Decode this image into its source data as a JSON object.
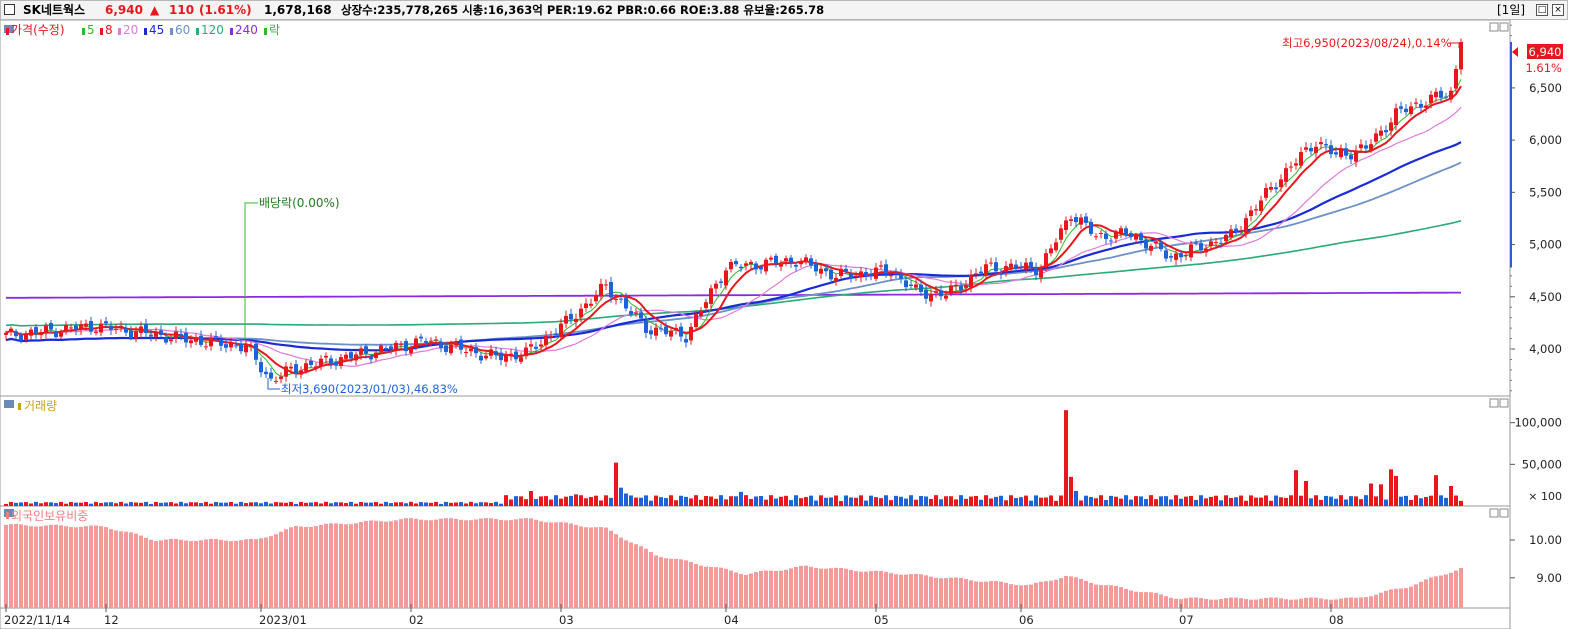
{
  "header": {
    "stock_name": "SK네트웍스",
    "price": "6,940",
    "change_arrow": "▲",
    "change": "110",
    "change_pct": "(1.61%)",
    "volume": "1,678,168",
    "stats": "상장수:235,778,265 시총:16,363억 PER:19.62 PBR:0.66 ROE:3.88 유보율:265.78",
    "period": "[1일]"
  },
  "colors": {
    "up": "#e8171d",
    "down": "#1e63d6",
    "ma5": "#2fb82f",
    "ma8": "#e8171d",
    "ma20": "#e07adf",
    "ma45": "#1a2bd6",
    "ma60": "#6c90c8",
    "ma120": "#2aaa76",
    "ma240": "#8a2be2",
    "foreign": "#f59a9a"
  },
  "legend": {
    "price_label": "가격(수정)",
    "items": [
      {
        "label": "5",
        "color": "#2fb82f"
      },
      {
        "label": "8",
        "color": "#e8171d"
      },
      {
        "label": "20",
        "color": "#e07adf"
      },
      {
        "label": "45",
        "color": "#1a2bd6"
      },
      {
        "label": "60",
        "color": "#6c90c8"
      },
      {
        "label": "120",
        "color": "#2aaa76"
      },
      {
        "label": "240",
        "color": "#8a2be2"
      },
      {
        "label": "락",
        "color": "#2fb82f"
      }
    ],
    "volume_label": "거래량",
    "foreign_label": "외국인보유비중"
  },
  "annotations": {
    "dividend": "배당락(0.00%)",
    "low": "최저3,690(2023/01/03),46.83%",
    "high": "최고6,950(2023/08/24),0.14%",
    "current_price": "6,940",
    "current_pct": "1.61%"
  },
  "chart_data": [
    {
      "type": "candlestick",
      "title": "가격(수정)",
      "yticks": [
        4000,
        4500,
        5000,
        5500,
        6000,
        6500
      ],
      "ytick_labels": [
        "4,000",
        "4,500",
        "5,000",
        "5,500",
        "6,000",
        "6,500"
      ],
      "ylim": [
        3550,
        7150
      ],
      "anchors": [
        {
          "d": 0,
          "c": 4130
        },
        {
          "d": 18,
          "c": 4220
        },
        {
          "d": 35,
          "c": 4100
        },
        {
          "d": 48,
          "c": 4020
        },
        {
          "d": 53,
          "c": 3700
        },
        {
          "d": 58,
          "c": 3820
        },
        {
          "d": 72,
          "c": 3960
        },
        {
          "d": 84,
          "c": 4080
        },
        {
          "d": 98,
          "c": 3920
        },
        {
          "d": 104,
          "c": 3960
        },
        {
          "d": 112,
          "c": 4250
        },
        {
          "d": 120,
          "c": 4600
        },
        {
          "d": 128,
          "c": 4200
        },
        {
          "d": 136,
          "c": 4130
        },
        {
          "d": 144,
          "c": 4780
        },
        {
          "d": 158,
          "c": 4850
        },
        {
          "d": 166,
          "c": 4700
        },
        {
          "d": 177,
          "c": 4750
        },
        {
          "d": 182,
          "c": 4550
        },
        {
          "d": 188,
          "c": 4520
        },
        {
          "d": 196,
          "c": 4780
        },
        {
          "d": 207,
          "c": 4780
        },
        {
          "d": 213,
          "c": 5300
        },
        {
          "d": 218,
          "c": 5080
        },
        {
          "d": 225,
          "c": 5100
        },
        {
          "d": 233,
          "c": 4880
        },
        {
          "d": 245,
          "c": 5080
        },
        {
          "d": 255,
          "c": 5650
        },
        {
          "d": 262,
          "c": 5990
        },
        {
          "d": 266,
          "c": 5850
        },
        {
          "d": 272,
          "c": 5920
        },
        {
          "d": 278,
          "c": 6250
        },
        {
          "d": 284,
          "c": 6380
        },
        {
          "d": 289,
          "c": 6450
        },
        {
          "d": 291,
          "c": 6940
        }
      ],
      "ma_ranges": {
        "ma45": [
          4000,
          5740
        ],
        "ma60": [
          4030,
          5560
        ],
        "ma120": [
          4250,
          5060
        ],
        "ma240": [
          4490,
          4540
        ]
      },
      "x_tick_labels": [
        {
          "d": 0,
          "label": "2022/11/14"
        },
        {
          "d": 20,
          "label": "12"
        },
        {
          "d": 51,
          "label": "2023/01"
        },
        {
          "d": 81,
          "label": "02"
        },
        {
          "d": 111,
          "label": "03"
        },
        {
          "d": 144,
          "label": "04"
        },
        {
          "d": 174,
          "label": "05"
        },
        {
          "d": 203,
          "label": "06"
        },
        {
          "d": 235,
          "label": "07"
        },
        {
          "d": 265,
          "label": "08"
        }
      ]
    },
    {
      "type": "bar",
      "title": "거래량",
      "yticks": [
        50000,
        100000
      ],
      "ytick_labels": [
        "50,000",
        "100,000"
      ],
      "unit_label": "× 100",
      "ylim": [
        0,
        132000
      ],
      "spikes": [
        {
          "d": 105,
          "v": 18000
        },
        {
          "d": 114,
          "v": 14000
        },
        {
          "d": 122,
          "v": 52000
        },
        {
          "d": 123,
          "v": 22000
        },
        {
          "d": 124,
          "v": 15000
        },
        {
          "d": 147,
          "v": 17000
        },
        {
          "d": 212,
          "v": 115000
        },
        {
          "d": 213,
          "v": 35000
        },
        {
          "d": 214,
          "v": 18000
        },
        {
          "d": 258,
          "v": 43000
        },
        {
          "d": 260,
          "v": 30000
        },
        {
          "d": 273,
          "v": 27000
        },
        {
          "d": 275,
          "v": 26000
        },
        {
          "d": 277,
          "v": 44000
        },
        {
          "d": 278,
          "v": 36000
        },
        {
          "d": 286,
          "v": 37000
        },
        {
          "d": 289,
          "v": 24000
        }
      ]
    },
    {
      "type": "bar",
      "title": "외국인보유비중",
      "yticks": [
        9.0,
        10.0
      ],
      "ytick_labels": [
        "9.00",
        "10.00"
      ],
      "ylim": [
        8.2,
        10.9
      ],
      "anchors": [
        {
          "d": 0,
          "v": 10.4
        },
        {
          "d": 20,
          "v": 10.35
        },
        {
          "d": 30,
          "v": 10.0
        },
        {
          "d": 50,
          "v": 10.0
        },
        {
          "d": 58,
          "v": 10.35
        },
        {
          "d": 80,
          "v": 10.55
        },
        {
          "d": 105,
          "v": 10.55
        },
        {
          "d": 120,
          "v": 10.3
        },
        {
          "d": 130,
          "v": 9.6
        },
        {
          "d": 148,
          "v": 9.1
        },
        {
          "d": 160,
          "v": 9.3
        },
        {
          "d": 180,
          "v": 9.1
        },
        {
          "d": 205,
          "v": 8.8
        },
        {
          "d": 212,
          "v": 9.05
        },
        {
          "d": 218,
          "v": 8.85
        },
        {
          "d": 235,
          "v": 8.45
        },
        {
          "d": 260,
          "v": 8.45
        },
        {
          "d": 270,
          "v": 8.45
        },
        {
          "d": 280,
          "v": 8.75
        },
        {
          "d": 291,
          "v": 9.25
        }
      ]
    }
  ]
}
